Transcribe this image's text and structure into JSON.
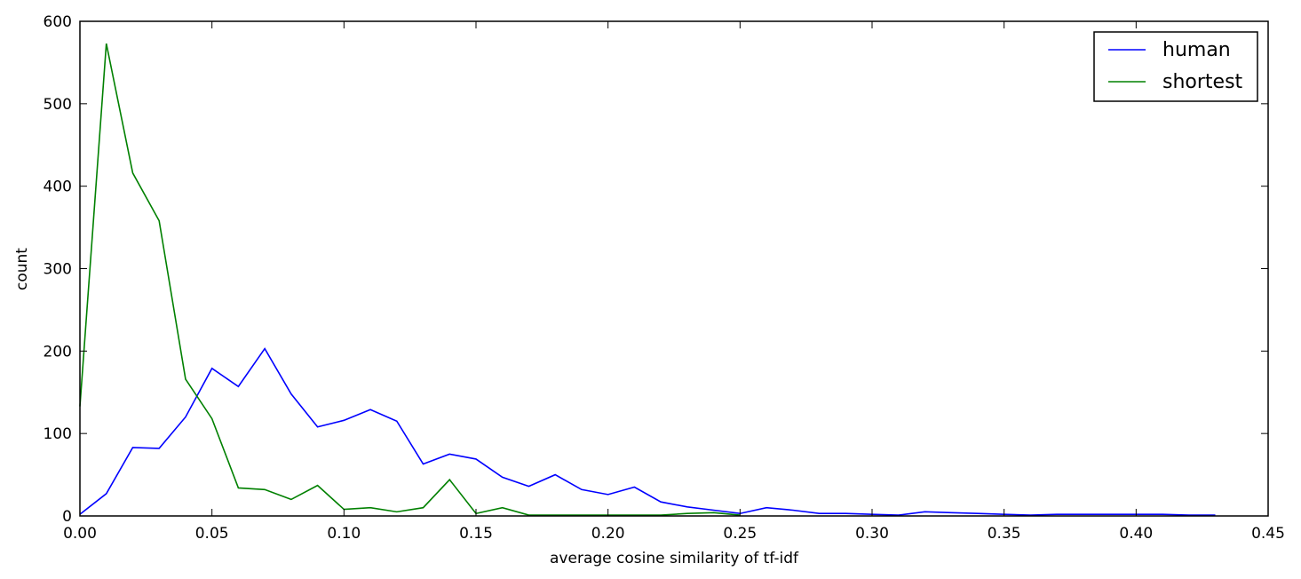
{
  "chart_data": {
    "type": "line",
    "title": "",
    "xlabel": "average cosine similarity of tf-idf",
    "ylabel": "count",
    "xlim": [
      0.0,
      0.45
    ],
    "ylim": [
      0,
      600
    ],
    "xticks": [
      0.0,
      0.05,
      0.1,
      0.15,
      0.2,
      0.25,
      0.3,
      0.35,
      0.4,
      0.45
    ],
    "xtick_labels": [
      "0.00",
      "0.05",
      "0.10",
      "0.15",
      "0.20",
      "0.25",
      "0.30",
      "0.35",
      "0.40",
      "0.45"
    ],
    "yticks": [
      0,
      100,
      200,
      300,
      400,
      500,
      600
    ],
    "ytick_labels": [
      "0",
      "100",
      "200",
      "300",
      "400",
      "500",
      "600"
    ],
    "grid": false,
    "legend_position": "top-right",
    "series": [
      {
        "name": "human",
        "color": "#0000ff",
        "x": [
          0.0,
          0.01,
          0.02,
          0.03,
          0.04,
          0.05,
          0.06,
          0.07,
          0.08,
          0.09,
          0.1,
          0.11,
          0.12,
          0.13,
          0.14,
          0.15,
          0.16,
          0.17,
          0.18,
          0.19,
          0.2,
          0.21,
          0.22,
          0.23,
          0.24,
          0.25,
          0.26,
          0.27,
          0.28,
          0.29,
          0.3,
          0.31,
          0.32,
          0.33,
          0.34,
          0.35,
          0.36,
          0.37,
          0.38,
          0.39,
          0.4,
          0.41,
          0.42,
          0.43
        ],
        "values": [
          2,
          27,
          83,
          82,
          120,
          179,
          157,
          203,
          148,
          108,
          116,
          129,
          115,
          63,
          75,
          69,
          47,
          36,
          50,
          32,
          26,
          35,
          17,
          11,
          7,
          3,
          10,
          7,
          3,
          3,
          2,
          1,
          5,
          4,
          3,
          2,
          1,
          2,
          2,
          2,
          2,
          2,
          1,
          1
        ]
      },
      {
        "name": "shortest",
        "color": "#008000",
        "x": [
          0.0,
          0.01,
          0.02,
          0.03,
          0.04,
          0.05,
          0.06,
          0.07,
          0.08,
          0.09,
          0.1,
          0.11,
          0.12,
          0.13,
          0.14,
          0.15,
          0.16,
          0.17,
          0.18,
          0.19,
          0.2,
          0.21,
          0.22,
          0.23,
          0.24,
          0.25
        ],
        "values": [
          133,
          573,
          416,
          358,
          166,
          118,
          34,
          32,
          20,
          37,
          8,
          10,
          5,
          10,
          44,
          3,
          10,
          1,
          1,
          1,
          1,
          1,
          1,
          3,
          4,
          1
        ]
      }
    ]
  }
}
